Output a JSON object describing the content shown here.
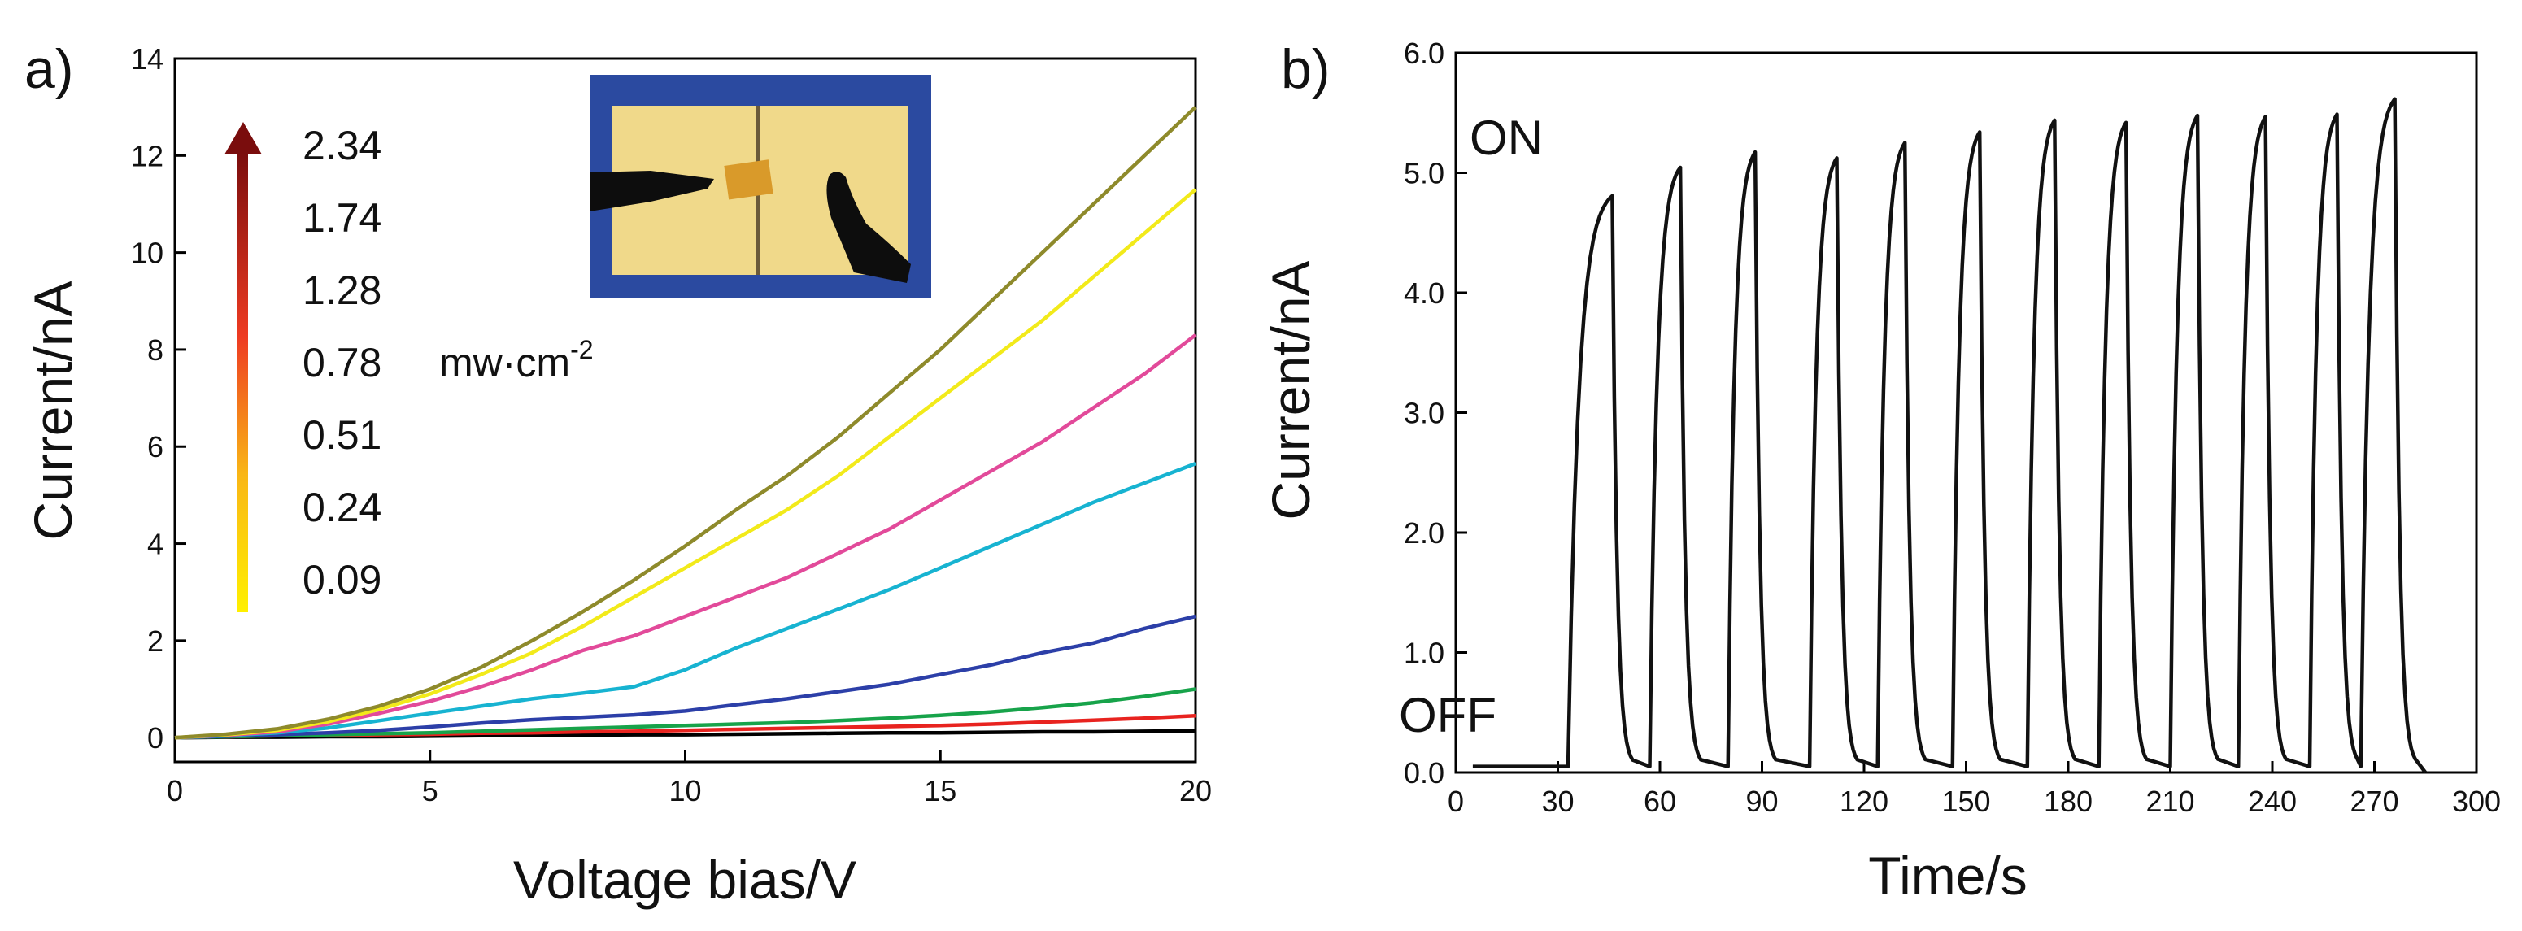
{
  "colors": {
    "black": "#000000",
    "red": "#e8231f",
    "green": "#17a34a",
    "blue": "#2c3fa8",
    "cyan": "#17b3d1",
    "magenta": "#e24a9a",
    "yellow": "#f2ea1a",
    "olive": "#8e8a2b",
    "inset_bg": "#2b4aa0",
    "inset_gold": "#f0d98a"
  },
  "chart_data": [
    {
      "id": "a",
      "panel_label": "a)",
      "type": "line",
      "xlabel": "Voltage bias/V",
      "ylabel": "Current/nA",
      "xlim": [
        0,
        20
      ],
      "ylim": [
        -0.5,
        14
      ],
      "xticks": [
        0,
        5,
        10,
        15,
        20
      ],
      "yticks": [
        0,
        2,
        4,
        6,
        8,
        10,
        12,
        14
      ],
      "x": [
        0,
        1,
        2,
        3,
        4,
        5,
        6,
        7,
        8,
        9,
        10,
        11,
        12,
        13,
        14,
        15,
        16,
        17,
        18,
        19,
        20
      ],
      "legend_values": [
        "2.34",
        "1.74",
        "1.28",
        "0.78",
        "0.51",
        "0.24",
        "0.09"
      ],
      "legend_unit": "mw·cm",
      "legend_unit_exp": "-2",
      "legend_placement": "top-left",
      "inset": "device photo (top-center)",
      "series": [
        {
          "color": "black",
          "values": [
            0,
            0.01,
            0.01,
            0.02,
            0.02,
            0.03,
            0.04,
            0.04,
            0.05,
            0.06,
            0.06,
            0.07,
            0.08,
            0.09,
            0.1,
            0.1,
            0.11,
            0.12,
            0.12,
            0.13,
            0.14
          ]
        },
        {
          "color": "red",
          "values": [
            0,
            0.02,
            0.04,
            0.05,
            0.06,
            0.07,
            0.09,
            0.1,
            0.12,
            0.13,
            0.15,
            0.17,
            0.19,
            0.21,
            0.23,
            0.25,
            0.28,
            0.32,
            0.36,
            0.4,
            0.45
          ]
        },
        {
          "color": "green",
          "values": [
            0,
            0.02,
            0.04,
            0.06,
            0.08,
            0.1,
            0.13,
            0.16,
            0.19,
            0.22,
            0.25,
            0.28,
            0.31,
            0.35,
            0.4,
            0.46,
            0.53,
            0.62,
            0.72,
            0.85,
            1.0
          ]
        },
        {
          "color": "blue",
          "values": [
            0,
            0.03,
            0.06,
            0.1,
            0.15,
            0.22,
            0.3,
            0.37,
            0.42,
            0.47,
            0.55,
            0.68,
            0.8,
            0.95,
            1.1,
            1.3,
            1.5,
            1.75,
            1.95,
            2.25,
            2.5
          ]
        },
        {
          "color": "cyan",
          "values": [
            0,
            0.04,
            0.1,
            0.2,
            0.35,
            0.5,
            0.65,
            0.8,
            0.92,
            1.05,
            1.4,
            1.85,
            2.25,
            2.65,
            3.05,
            3.5,
            3.95,
            4.4,
            4.85,
            5.25,
            5.65
          ]
        },
        {
          "color": "magenta",
          "values": [
            0,
            0.05,
            0.12,
            0.28,
            0.5,
            0.75,
            1.05,
            1.4,
            1.8,
            2.1,
            2.5,
            2.9,
            3.3,
            3.8,
            4.3,
            4.9,
            5.5,
            6.1,
            6.8,
            7.5,
            8.3
          ]
        },
        {
          "color": "yellow",
          "values": [
            0,
            0.06,
            0.15,
            0.33,
            0.58,
            0.9,
            1.3,
            1.75,
            2.3,
            2.9,
            3.5,
            4.1,
            4.7,
            5.4,
            6.2,
            7.0,
            7.8,
            8.6,
            9.5,
            10.4,
            11.3
          ]
        },
        {
          "color": "olive",
          "values": [
            0,
            0.07,
            0.18,
            0.38,
            0.65,
            1.0,
            1.45,
            2.0,
            2.6,
            3.25,
            3.95,
            4.7,
            5.4,
            6.2,
            7.1,
            8.0,
            9.0,
            10.0,
            11.0,
            12.0,
            13.0
          ]
        }
      ]
    },
    {
      "id": "b",
      "panel_label": "b)",
      "type": "line",
      "xlabel": "Time/s",
      "ylabel": "Current/nA",
      "xlim": [
        0,
        300
      ],
      "ylim": [
        0,
        6
      ],
      "xticks": [
        0,
        30,
        60,
        90,
        120,
        150,
        180,
        210,
        240,
        270,
        300
      ],
      "yticks": [
        "0.0",
        "1.0",
        "2.0",
        "3.0",
        "4.0",
        "5.0",
        "6.0"
      ],
      "annotations": [
        "ON",
        "OFF"
      ],
      "baseline": 0.05,
      "dark_start": 5,
      "pulses": [
        {
          "on": 33,
          "off": 46,
          "peak": 4.88
        },
        {
          "on": 57,
          "off": 66,
          "peak": 5.12
        },
        {
          "on": 80,
          "off": 88,
          "peak": 5.25
        },
        {
          "on": 104,
          "off": 112,
          "peak": 5.2
        },
        {
          "on": 124,
          "off": 132,
          "peak": 5.33
        },
        {
          "on": 146,
          "off": 154,
          "peak": 5.42
        },
        {
          "on": 168,
          "off": 176,
          "peak": 5.52
        },
        {
          "on": 189,
          "off": 197,
          "peak": 5.5
        },
        {
          "on": 210,
          "off": 218,
          "peak": 5.56
        },
        {
          "on": 230,
          "off": 238,
          "peak": 5.55
        },
        {
          "on": 251,
          "off": 259,
          "peak": 5.57
        },
        {
          "on": 266,
          "off": 276,
          "peak": 5.7
        }
      ],
      "end_time": 285
    }
  ]
}
